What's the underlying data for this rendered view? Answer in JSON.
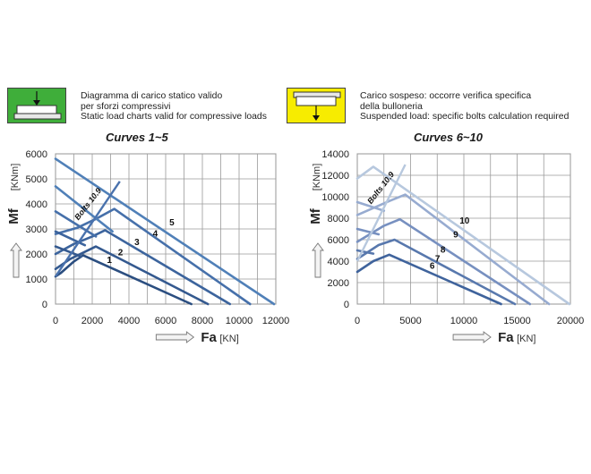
{
  "legend": {
    "compressive": {
      "icon": "compressive-load-icon",
      "color": "#3fae3a",
      "lines": [
        "Diagramma di carico statico valido",
        "per sforzi compressivi",
        "Static load charts valid for compressive loads"
      ]
    },
    "suspended": {
      "icon": "suspended-load-icon",
      "color": "#f7ec00",
      "lines": [
        "Carico sospeso: occorre verifica specifica",
        "della bulloneria",
        "Suspended load:  specific bolts calculation required"
      ]
    }
  },
  "chart_data": [
    {
      "type": "line",
      "title": "Curves 1~5",
      "xlabel": "Fa",
      "xunit": "[KN]",
      "ylabel": "Mf",
      "yunit": "[KNm]",
      "xlim": [
        0,
        12000
      ],
      "ylim": [
        0,
        6000
      ],
      "xticks": [
        "0",
        "2000",
        "4000",
        "6000",
        "8000",
        "10000",
        "12000"
      ],
      "yticks": [
        "0",
        "1000",
        "2000",
        "3000",
        "4000",
        "5000",
        "6000"
      ],
      "grid": true,
      "annotation": "Bolts 10.9",
      "bolts_line": {
        "x": [
          0,
          3500
        ],
        "y": [
          1100,
          4900
        ],
        "color": "#4a72ad"
      },
      "series": [
        {
          "label": "1",
          "color": "#2b4e80",
          "x": [
            0,
            300,
            1000,
            1500,
            7400
          ],
          "y": [
            1100,
            1250,
            1700,
            1950,
            0
          ],
          "label_pos": [
            2800,
            1650
          ]
        },
        {
          "label": "2",
          "color": "#34598f",
          "x": [
            0,
            800,
            1500,
            2200,
            8300
          ],
          "y": [
            1400,
            1800,
            2050,
            2300,
            0
          ],
          "label_pos": [
            3400,
            1950
          ]
        },
        {
          "label": "3",
          "color": "#3c649d",
          "x": [
            0,
            1000,
            2000,
            2700,
            9500
          ],
          "y": [
            2000,
            2400,
            2700,
            2950,
            0
          ],
          "label_pos": [
            4300,
            2350
          ]
        },
        {
          "label": "4",
          "color": "#4670aa",
          "x": [
            0,
            1200,
            2200,
            3200,
            10600
          ],
          "y": [
            2800,
            3050,
            3400,
            3800,
            0
          ],
          "label_pos": [
            5300,
            2700
          ]
        },
        {
          "label": "5",
          "color": "#5080b8",
          "x": [
            0,
            11900
          ],
          "y": [
            5800,
            0
          ],
          "label_pos": [
            6200,
            3150
          ]
        },
        {
          "label": "",
          "color": "#5080b8",
          "x": [
            0,
            3100
          ],
          "y": [
            4700,
            2900
          ],
          "label_pos": null
        },
        {
          "label": "",
          "color": "#4670aa",
          "x": [
            0,
            2200
          ],
          "y": [
            3700,
            2700
          ],
          "label_pos": null
        },
        {
          "label": "",
          "color": "#3c649d",
          "x": [
            0,
            1600
          ],
          "y": [
            2900,
            2350
          ],
          "label_pos": null
        },
        {
          "label": "",
          "color": "#34598f",
          "x": [
            0,
            1400
          ],
          "y": [
            2300,
            1900
          ],
          "label_pos": null
        }
      ]
    },
    {
      "type": "line",
      "title": "Curves 6~10",
      "xlabel": "Fa",
      "xunit": "[KN]",
      "ylabel": "Mf",
      "yunit": "[KNm]",
      "xlim": [
        0,
        20000
      ],
      "ylim": [
        0,
        14000
      ],
      "xticks": [
        "0",
        "5000",
        "10000",
        "15000",
        "20000"
      ],
      "yticks": [
        "0",
        "2000",
        "4000",
        "6000",
        "8000",
        "10000",
        "12000",
        "14000"
      ],
      "grid": true,
      "annotation": "Bolts 10.9",
      "bolts_line": {
        "x": [
          0,
          4500
        ],
        "y": [
          4000,
          13000
        ],
        "color": "#b7c8de"
      },
      "series": [
        {
          "label": "6",
          "color": "#3f639c",
          "x": [
            0,
            1500,
            3000,
            13500
          ],
          "y": [
            3000,
            4000,
            4600,
            0
          ],
          "label_pos": [
            6800,
            3300
          ]
        },
        {
          "label": "7",
          "color": "#5878ad",
          "x": [
            0,
            2000,
            3500,
            14800
          ],
          "y": [
            4200,
            5500,
            6000,
            0
          ],
          "label_pos": [
            7300,
            3950
          ]
        },
        {
          "label": "8",
          "color": "#7790c0",
          "x": [
            0,
            2500,
            4000,
            16200
          ],
          "y": [
            5800,
            7300,
            7900,
            0
          ],
          "label_pos": [
            7800,
            4800
          ]
        },
        {
          "label": "9",
          "color": "#97abd0",
          "x": [
            0,
            3000,
            4500,
            18000
          ],
          "y": [
            8300,
            9600,
            10200,
            0
          ],
          "label_pos": [
            9000,
            6200
          ]
        },
        {
          "label": "10",
          "color": "#b7c8de",
          "x": [
            0,
            1500,
            19900
          ],
          "y": [
            11700,
            12800,
            0
          ],
          "label_pos": [
            9600,
            7500
          ]
        },
        {
          "label": "",
          "color": "#97abd0",
          "x": [
            0,
            2500
          ],
          "y": [
            9500,
            8700
          ],
          "label_pos": null
        },
        {
          "label": "",
          "color": "#7790c0",
          "x": [
            0,
            2000
          ],
          "y": [
            7000,
            6500
          ],
          "label_pos": null
        },
        {
          "label": "",
          "color": "#5878ad",
          "x": [
            0,
            1500
          ],
          "y": [
            5000,
            4700
          ],
          "label_pos": null
        }
      ]
    }
  ]
}
